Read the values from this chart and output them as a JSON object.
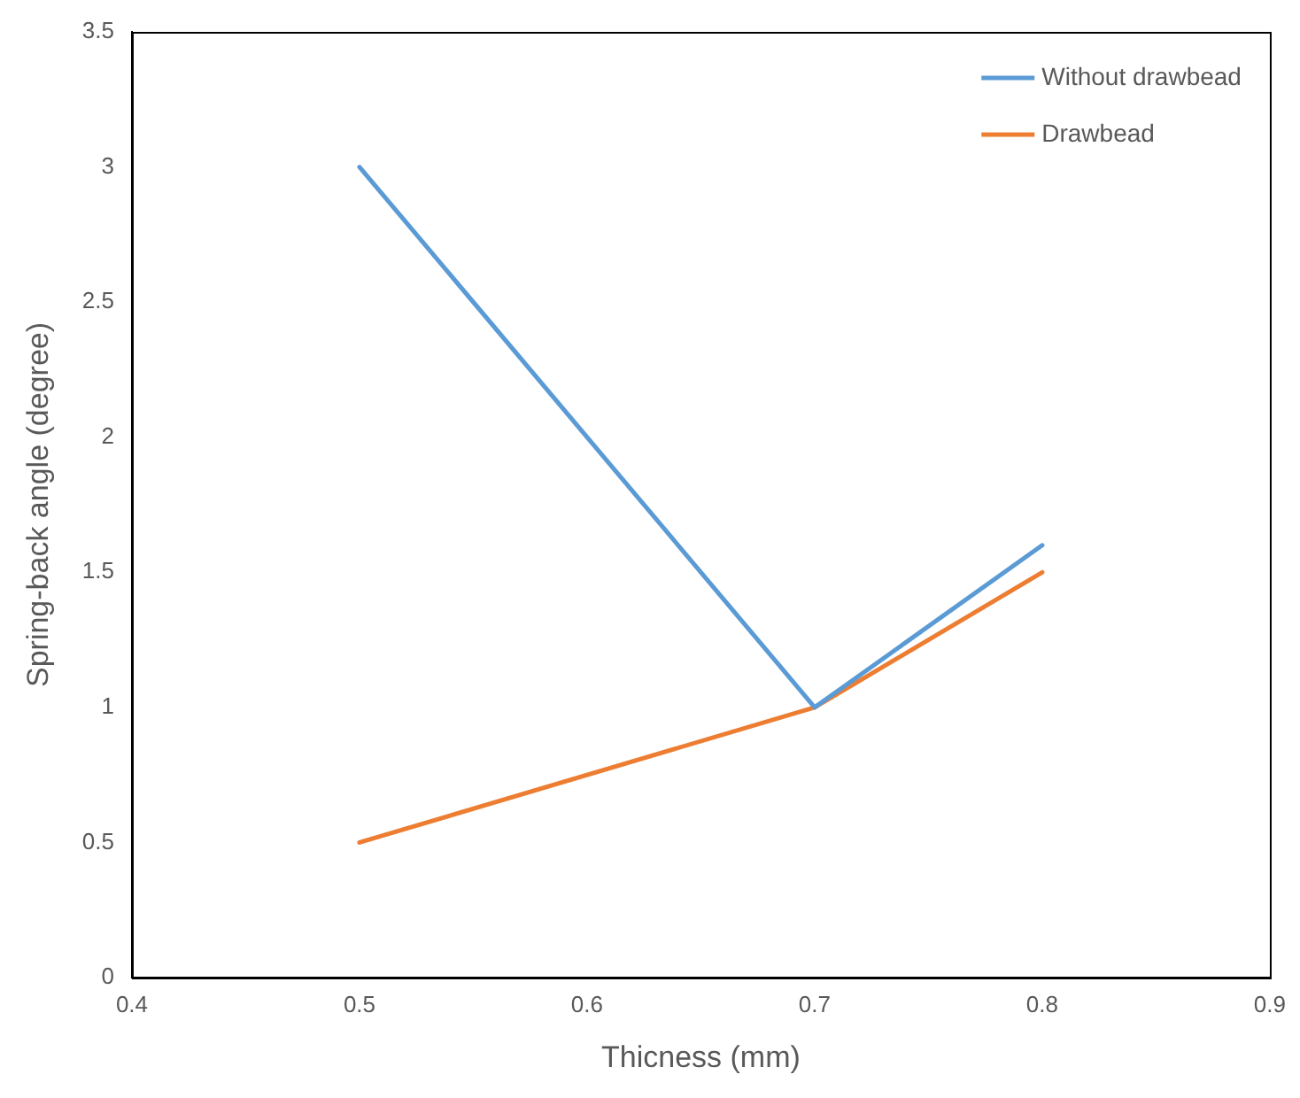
{
  "chart_data": {
    "type": "line",
    "xlabel": "Thicness (mm)",
    "ylabel": "Spring-back angle (degree)",
    "x": [
      0.5,
      0.7,
      0.8
    ],
    "series": [
      {
        "name": "Without drawbead",
        "color": "#5b9bd5",
        "values": [
          3,
          1,
          1.6
        ]
      },
      {
        "name": "Drawbead",
        "color": "#ed7d31",
        "values": [
          0.5,
          1,
          1.5
        ]
      }
    ],
    "xlim": [
      0.4,
      0.9
    ],
    "xticks": [
      0.4,
      0.5,
      0.6,
      0.7,
      0.8,
      0.9
    ],
    "ylim": [
      0,
      3.5
    ],
    "yticks": [
      0,
      0.5,
      1,
      1.5,
      2,
      2.5,
      3,
      3.5
    ],
    "grid": false,
    "legend": "top right",
    "marker": "none",
    "line_style": "solid"
  }
}
